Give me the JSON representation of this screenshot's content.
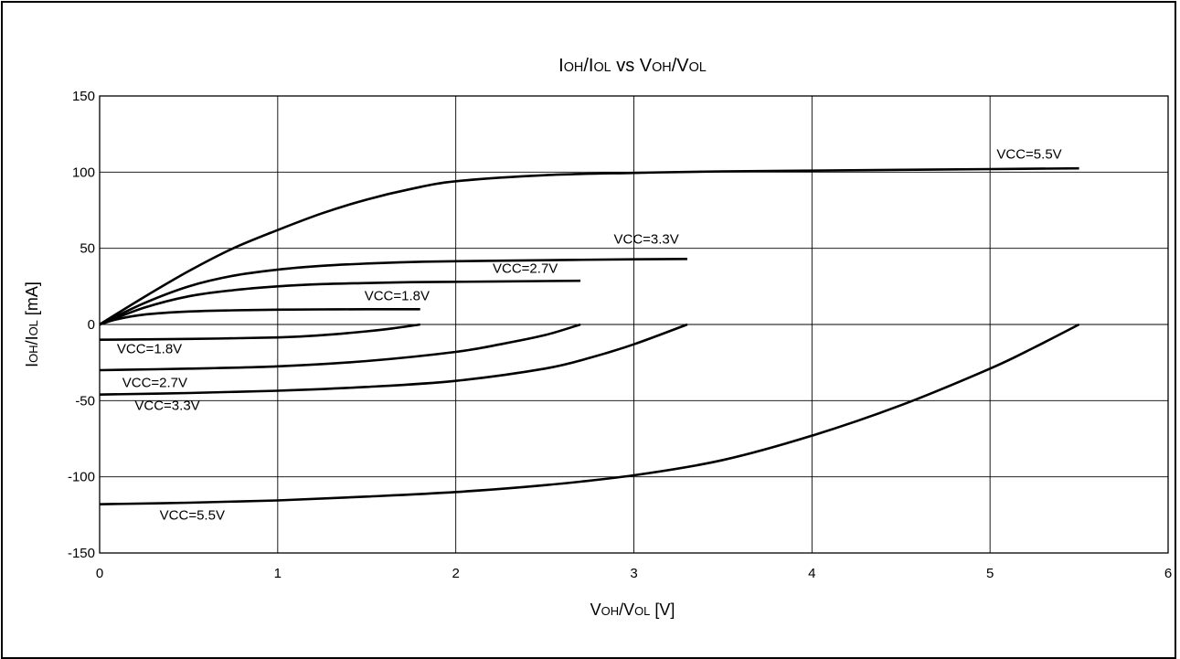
{
  "chart_data": {
    "type": "line",
    "title_parts": [
      "I",
      "OH",
      "/I",
      "OL",
      " vs V",
      "OH",
      "/V",
      "OL"
    ],
    "xlabel_parts": [
      "V",
      "OH",
      "/V",
      "OL",
      " [V]"
    ],
    "ylabel_parts": [
      "I",
      "OH",
      "/I",
      "OL",
      " [mA]"
    ],
    "xlim": [
      0,
      6
    ],
    "ylim": [
      -150,
      150
    ],
    "xticks": [
      0,
      1,
      2,
      3,
      4,
      5,
      6
    ],
    "yticks": [
      -150,
      -100,
      -50,
      0,
      50,
      100,
      150
    ],
    "grid": true,
    "series": [
      {
        "name": "VCC=5.5V",
        "label_anchor": [
          5.22,
          109
        ],
        "x": [
          0,
          0.25,
          0.5,
          0.75,
          1.0,
          1.25,
          1.5,
          1.75,
          2.0,
          2.5,
          3.0,
          3.5,
          4.0,
          4.5,
          5.0,
          5.5
        ],
        "y": [
          0,
          18,
          35,
          50,
          62,
          73,
          82,
          89,
          94,
          98,
          99.5,
          100.5,
          101,
          101.5,
          102,
          102.5
        ]
      },
      {
        "name": "VCC=3.3V",
        "label_anchor": [
          3.07,
          53
        ],
        "x": [
          0,
          0.25,
          0.5,
          0.75,
          1.0,
          1.25,
          1.5,
          1.75,
          2.0,
          2.5,
          3.0,
          3.3
        ],
        "y": [
          0,
          14,
          25,
          32,
          36,
          38.5,
          40,
          41,
          41.5,
          42.2,
          42.8,
          43
        ]
      },
      {
        "name": "VCC=2.7V",
        "label_anchor": [
          2.39,
          34
        ],
        "x": [
          0,
          0.25,
          0.5,
          0.75,
          1.0,
          1.25,
          1.5,
          1.75,
          2.0,
          2.5,
          2.7
        ],
        "y": [
          0,
          11,
          18.5,
          22.5,
          25,
          26.5,
          27.2,
          27.8,
          28,
          28.5,
          28.7
        ]
      },
      {
        "name": "VCC=1.8V",
        "label_anchor": [
          1.67,
          16
        ],
        "x": [
          0,
          0.1,
          0.25,
          0.5,
          0.75,
          1.0,
          1.25,
          1.5,
          1.8
        ],
        "y": [
          0,
          3.5,
          6.5,
          8.5,
          9.3,
          9.7,
          9.9,
          10,
          10
        ]
      },
      {
        "name": "VCC=1.8V",
        "label_anchor": [
          0.28,
          -19
        ],
        "x": [
          0,
          0.5,
          1.0,
          1.25,
          1.5,
          1.65,
          1.8
        ],
        "y": [
          -10,
          -9.5,
          -8.5,
          -7,
          -4.5,
          -2.5,
          0
        ]
      },
      {
        "name": "VCC=2.7V",
        "label_anchor": [
          0.31,
          -41
        ],
        "x": [
          0,
          0.5,
          1.0,
          1.5,
          2.0,
          2.25,
          2.5,
          2.7
        ],
        "y": [
          -30,
          -29,
          -27.5,
          -24,
          -18,
          -13,
          -7,
          0
        ]
      },
      {
        "name": "VCC=3.3V",
        "label_anchor": [
          0.38,
          -56
        ],
        "x": [
          0,
          0.5,
          1.0,
          1.5,
          2.0,
          2.5,
          2.75,
          3.0,
          3.3
        ],
        "y": [
          -46,
          -45,
          -43.5,
          -41,
          -37,
          -29,
          -22,
          -13,
          0
        ]
      },
      {
        "name": "VCC=5.5V",
        "label_anchor": [
          0.52,
          -128
        ],
        "x": [
          0,
          0.5,
          1.0,
          1.5,
          2.0,
          2.5,
          3.0,
          3.5,
          4.0,
          4.5,
          5.0,
          5.25,
          5.5
        ],
        "y": [
          -118,
          -117,
          -115.5,
          -113,
          -110,
          -105.5,
          -99,
          -89,
          -73,
          -53,
          -29,
          -15,
          0
        ]
      }
    ]
  }
}
